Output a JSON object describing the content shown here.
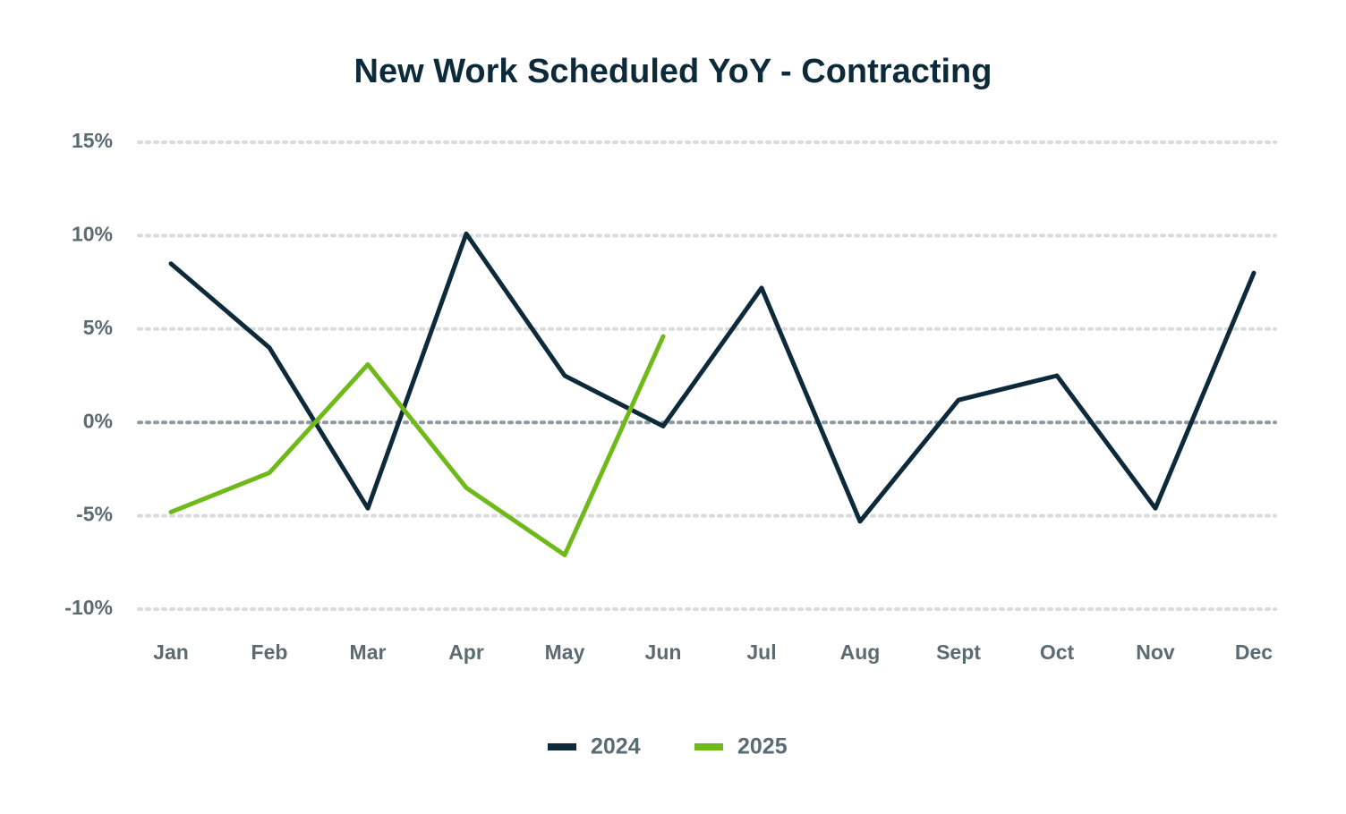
{
  "chart_data": {
    "type": "line",
    "title": "New Work Scheduled YoY - Contracting",
    "categories": [
      "Jan",
      "Feb",
      "Mar",
      "Apr",
      "May",
      "Jun",
      "Jul",
      "Aug",
      "Sept",
      "Oct",
      "Nov",
      "Dec"
    ],
    "series": [
      {
        "name": "2024",
        "color": "#0d2a3a",
        "values": [
          8.5,
          4.0,
          -4.6,
          10.1,
          2.5,
          -0.2,
          7.2,
          -5.3,
          1.2,
          2.5,
          -4.6,
          8.0
        ]
      },
      {
        "name": "2025",
        "color": "#6fba1a",
        "values": [
          -4.8,
          -2.7,
          3.1,
          -3.5,
          -7.1,
          4.6,
          null,
          null,
          null,
          null,
          null,
          null
        ]
      }
    ],
    "ylim": [
      -10,
      15
    ],
    "yticks": [
      {
        "value": -10,
        "label": "-10%"
      },
      {
        "value": -5,
        "label": "-5%"
      },
      {
        "value": 0,
        "label": "0%"
      },
      {
        "value": 5,
        "label": "5%"
      },
      {
        "value": 10,
        "label": "10%"
      },
      {
        "value": 15,
        "label": "15%"
      }
    ],
    "grid": true,
    "legend": "bottom"
  }
}
